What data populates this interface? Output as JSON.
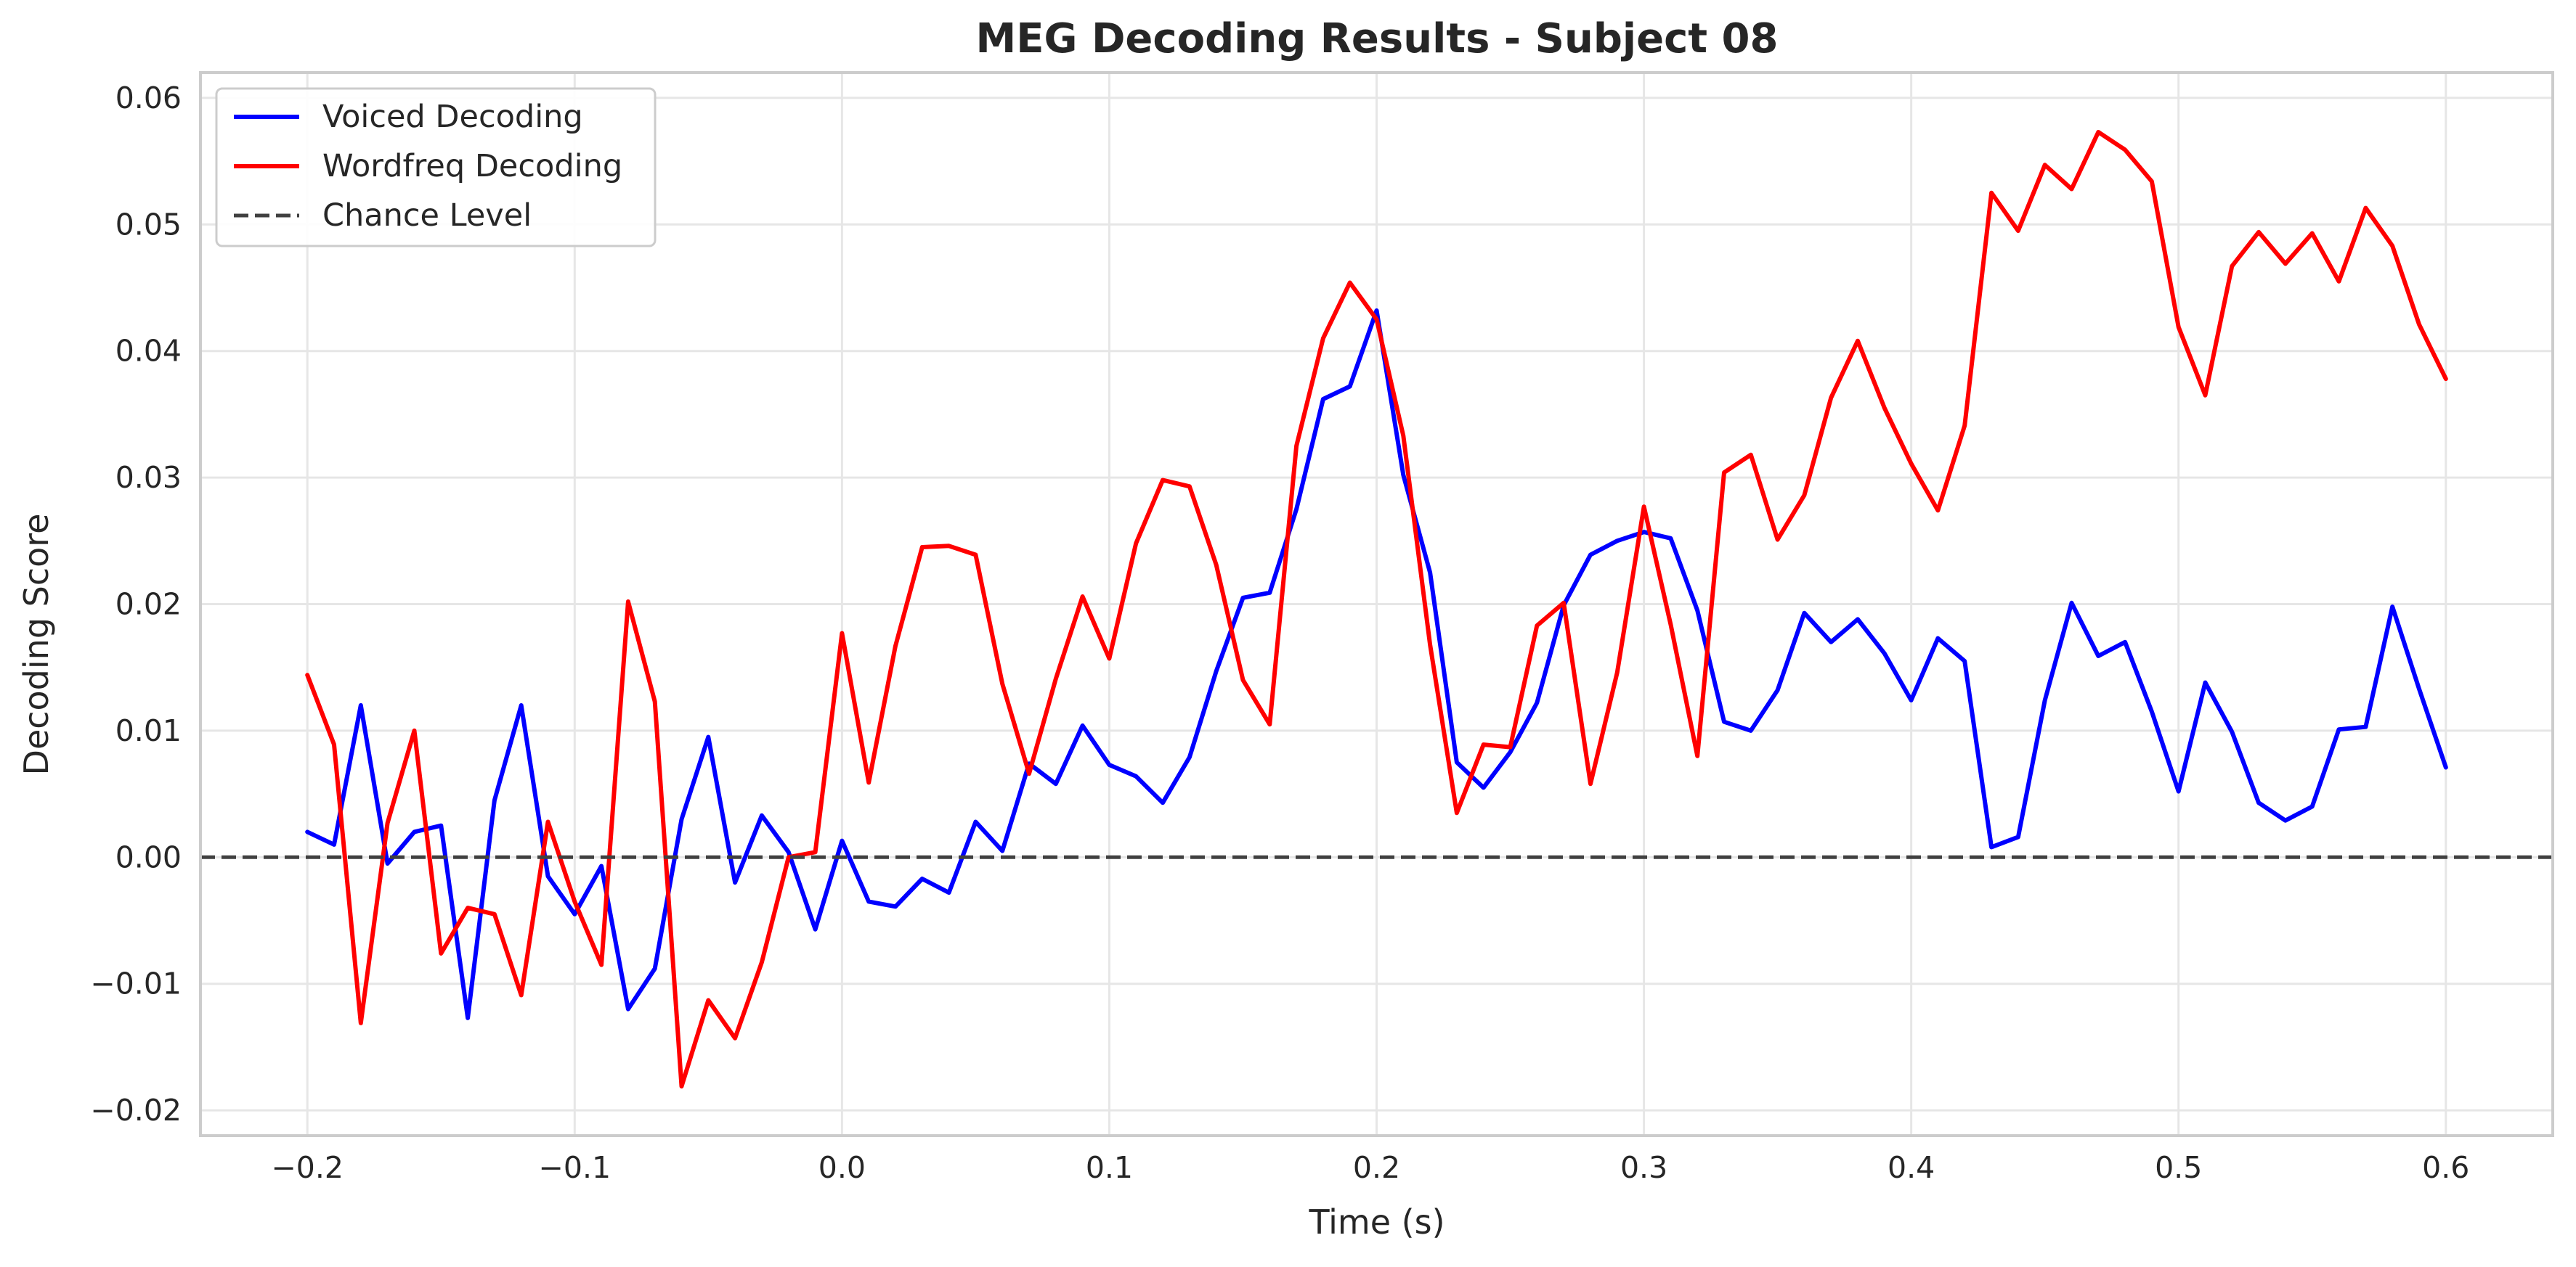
{
  "chart_data": {
    "type": "line",
    "title": "MEG Decoding Results - Subject 08",
    "xlabel": "Time (s)",
    "ylabel": "Decoding Score",
    "xlim": [
      -0.24,
      0.64
    ],
    "ylim": [
      -0.022,
      0.062
    ],
    "grid": true,
    "legend_position": "top-left",
    "x_ticks": [
      -0.2,
      -0.1,
      0.0,
      0.1,
      0.2,
      0.3,
      0.4,
      0.5,
      0.6
    ],
    "x_tick_labels": [
      "−0.2",
      "−0.1",
      "0.0",
      "0.1",
      "0.2",
      "0.3",
      "0.4",
      "0.5",
      "0.6"
    ],
    "y_ticks": [
      -0.02,
      -0.01,
      0.0,
      0.01,
      0.02,
      0.03,
      0.04,
      0.05,
      0.06
    ],
    "y_tick_labels": [
      "−0.02",
      "−0.01",
      "0.00",
      "0.01",
      "0.02",
      "0.03",
      "0.04",
      "0.05",
      "0.06"
    ],
    "x": [
      -0.2,
      -0.19,
      -0.18,
      -0.17,
      -0.16,
      -0.15,
      -0.14,
      -0.13,
      -0.12,
      -0.11,
      -0.1,
      -0.09,
      -0.08,
      -0.07,
      -0.06,
      -0.05,
      -0.04,
      -0.03,
      -0.02,
      -0.01,
      0.0,
      0.01,
      0.02,
      0.03,
      0.04,
      0.05,
      0.06,
      0.07,
      0.08,
      0.09,
      0.1,
      0.11,
      0.12,
      0.13,
      0.14,
      0.15,
      0.16,
      0.17,
      0.18,
      0.19,
      0.2,
      0.21,
      0.22,
      0.23,
      0.24,
      0.25,
      0.26,
      0.27,
      0.28,
      0.29,
      0.3,
      0.31,
      0.32,
      0.33,
      0.34,
      0.35,
      0.36,
      0.37,
      0.38,
      0.39,
      0.4,
      0.41,
      0.42,
      0.43,
      0.44,
      0.45,
      0.46,
      0.47,
      0.48,
      0.49,
      0.5,
      0.51,
      0.52,
      0.53,
      0.54,
      0.55,
      0.56,
      0.57,
      0.58,
      0.59,
      0.6
    ],
    "series": [
      {
        "name": "Voiced Decoding",
        "color": "#0000ff",
        "style": "solid",
        "values": [
          0.002,
          0.001,
          0.012,
          -0.0005,
          0.002,
          0.0025,
          -0.0127,
          0.0045,
          0.012,
          -0.0015,
          -0.0045,
          -0.0007,
          -0.012,
          -0.0088,
          0.003,
          0.0095,
          -0.002,
          0.0033,
          0.0004,
          -0.0057,
          0.0013,
          -0.0035,
          -0.0039,
          -0.0017,
          -0.0028,
          0.0028,
          0.0005,
          0.0074,
          0.0058,
          0.0104,
          0.0073,
          0.0064,
          0.0043,
          0.0079,
          0.0147,
          0.0205,
          0.0209,
          0.0275,
          0.0362,
          0.0372,
          0.0432,
          0.0302,
          0.0225,
          0.0075,
          0.0055,
          0.0083,
          0.0122,
          0.0199,
          0.0239,
          0.025,
          0.0257,
          0.0252,
          0.0195,
          0.0107,
          0.01,
          0.0132,
          0.0193,
          0.017,
          0.0188,
          0.0161,
          0.0124,
          0.0173,
          0.0155,
          0.0008,
          0.0016,
          0.0124,
          0.0201,
          0.0159,
          0.017,
          0.0115,
          0.0052,
          0.0138,
          0.0099,
          0.0043,
          0.0029,
          0.004,
          0.0101,
          0.0103,
          0.0198,
          0.0133,
          0.0071
        ]
      },
      {
        "name": "Wordfreq Decoding",
        "color": "#ff0000",
        "style": "solid",
        "values": [
          0.0144,
          0.0089,
          -0.0131,
          0.0027,
          0.01,
          -0.0076,
          -0.004,
          -0.0045,
          -0.0109,
          0.0028,
          -0.0035,
          -0.0085,
          0.0202,
          0.0123,
          -0.0181,
          -0.0113,
          -0.0143,
          -0.0083,
          0.0,
          0.0004,
          0.0177,
          0.0059,
          0.0167,
          0.0245,
          0.0246,
          0.0239,
          0.0137,
          0.0066,
          0.0141,
          0.0206,
          0.0157,
          0.0248,
          0.0298,
          0.0293,
          0.0231,
          0.014,
          0.0105,
          0.0325,
          0.041,
          0.0454,
          0.0425,
          0.0333,
          0.0168,
          0.0035,
          0.0089,
          0.0087,
          0.0183,
          0.0201,
          0.0058,
          0.0146,
          0.0277,
          0.0184,
          0.008,
          0.0304,
          0.0318,
          0.0251,
          0.0286,
          0.0363,
          0.0408,
          0.0355,
          0.0311,
          0.0274,
          0.0341,
          0.0525,
          0.0495,
          0.0547,
          0.0528,
          0.0573,
          0.0559,
          0.0534,
          0.0419,
          0.0365,
          0.0467,
          0.0494,
          0.0469,
          0.0493,
          0.0455,
          0.0513,
          0.0483,
          0.0421,
          0.0378
        ]
      },
      {
        "name": "Chance Level",
        "color": "#404040",
        "style": "dashed",
        "y_constant": 0.0
      }
    ]
  }
}
